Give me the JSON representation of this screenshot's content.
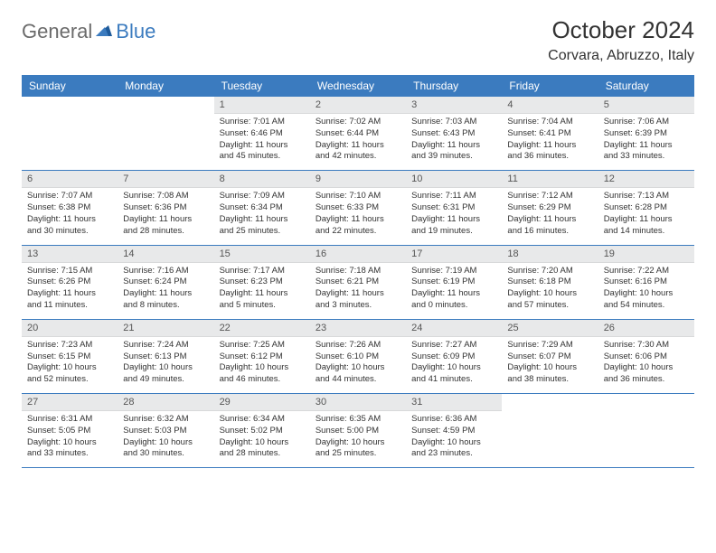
{
  "logo": {
    "text1": "General",
    "text2": "Blue"
  },
  "title": "October 2024",
  "location": "Corvara, Abruzzo, Italy",
  "colors": {
    "header_bg": "#3b7bbf",
    "header_text": "#ffffff",
    "daynum_bg": "#e8e9ea",
    "row_divider": "#3b7bbf",
    "body_text": "#333333",
    "logo_gray": "#6b6b6b",
    "logo_blue": "#3b7bbf"
  },
  "typography": {
    "title_fontsize": 26,
    "location_fontsize": 16,
    "dayheader_fontsize": 12,
    "daynum_fontsize": 11,
    "cell_fontsize": 9.5
  },
  "calendar": {
    "type": "table",
    "day_headers": [
      "Sunday",
      "Monday",
      "Tuesday",
      "Wednesday",
      "Thursday",
      "Friday",
      "Saturday"
    ],
    "weeks": [
      [
        {
          "n": "",
          "lines": [
            "",
            "",
            ""
          ]
        },
        {
          "n": "",
          "lines": [
            "",
            "",
            ""
          ]
        },
        {
          "n": "1",
          "lines": [
            "Sunrise: 7:01 AM",
            "Sunset: 6:46 PM",
            "Daylight: 11 hours and 45 minutes."
          ]
        },
        {
          "n": "2",
          "lines": [
            "Sunrise: 7:02 AM",
            "Sunset: 6:44 PM",
            "Daylight: 11 hours and 42 minutes."
          ]
        },
        {
          "n": "3",
          "lines": [
            "Sunrise: 7:03 AM",
            "Sunset: 6:43 PM",
            "Daylight: 11 hours and 39 minutes."
          ]
        },
        {
          "n": "4",
          "lines": [
            "Sunrise: 7:04 AM",
            "Sunset: 6:41 PM",
            "Daylight: 11 hours and 36 minutes."
          ]
        },
        {
          "n": "5",
          "lines": [
            "Sunrise: 7:06 AM",
            "Sunset: 6:39 PM",
            "Daylight: 11 hours and 33 minutes."
          ]
        }
      ],
      [
        {
          "n": "6",
          "lines": [
            "Sunrise: 7:07 AM",
            "Sunset: 6:38 PM",
            "Daylight: 11 hours and 30 minutes."
          ]
        },
        {
          "n": "7",
          "lines": [
            "Sunrise: 7:08 AM",
            "Sunset: 6:36 PM",
            "Daylight: 11 hours and 28 minutes."
          ]
        },
        {
          "n": "8",
          "lines": [
            "Sunrise: 7:09 AM",
            "Sunset: 6:34 PM",
            "Daylight: 11 hours and 25 minutes."
          ]
        },
        {
          "n": "9",
          "lines": [
            "Sunrise: 7:10 AM",
            "Sunset: 6:33 PM",
            "Daylight: 11 hours and 22 minutes."
          ]
        },
        {
          "n": "10",
          "lines": [
            "Sunrise: 7:11 AM",
            "Sunset: 6:31 PM",
            "Daylight: 11 hours and 19 minutes."
          ]
        },
        {
          "n": "11",
          "lines": [
            "Sunrise: 7:12 AM",
            "Sunset: 6:29 PM",
            "Daylight: 11 hours and 16 minutes."
          ]
        },
        {
          "n": "12",
          "lines": [
            "Sunrise: 7:13 AM",
            "Sunset: 6:28 PM",
            "Daylight: 11 hours and 14 minutes."
          ]
        }
      ],
      [
        {
          "n": "13",
          "lines": [
            "Sunrise: 7:15 AM",
            "Sunset: 6:26 PM",
            "Daylight: 11 hours and 11 minutes."
          ]
        },
        {
          "n": "14",
          "lines": [
            "Sunrise: 7:16 AM",
            "Sunset: 6:24 PM",
            "Daylight: 11 hours and 8 minutes."
          ]
        },
        {
          "n": "15",
          "lines": [
            "Sunrise: 7:17 AM",
            "Sunset: 6:23 PM",
            "Daylight: 11 hours and 5 minutes."
          ]
        },
        {
          "n": "16",
          "lines": [
            "Sunrise: 7:18 AM",
            "Sunset: 6:21 PM",
            "Daylight: 11 hours and 3 minutes."
          ]
        },
        {
          "n": "17",
          "lines": [
            "Sunrise: 7:19 AM",
            "Sunset: 6:19 PM",
            "Daylight: 11 hours and 0 minutes."
          ]
        },
        {
          "n": "18",
          "lines": [
            "Sunrise: 7:20 AM",
            "Sunset: 6:18 PM",
            "Daylight: 10 hours and 57 minutes."
          ]
        },
        {
          "n": "19",
          "lines": [
            "Sunrise: 7:22 AM",
            "Sunset: 6:16 PM",
            "Daylight: 10 hours and 54 minutes."
          ]
        }
      ],
      [
        {
          "n": "20",
          "lines": [
            "Sunrise: 7:23 AM",
            "Sunset: 6:15 PM",
            "Daylight: 10 hours and 52 minutes."
          ]
        },
        {
          "n": "21",
          "lines": [
            "Sunrise: 7:24 AM",
            "Sunset: 6:13 PM",
            "Daylight: 10 hours and 49 minutes."
          ]
        },
        {
          "n": "22",
          "lines": [
            "Sunrise: 7:25 AM",
            "Sunset: 6:12 PM",
            "Daylight: 10 hours and 46 minutes."
          ]
        },
        {
          "n": "23",
          "lines": [
            "Sunrise: 7:26 AM",
            "Sunset: 6:10 PM",
            "Daylight: 10 hours and 44 minutes."
          ]
        },
        {
          "n": "24",
          "lines": [
            "Sunrise: 7:27 AM",
            "Sunset: 6:09 PM",
            "Daylight: 10 hours and 41 minutes."
          ]
        },
        {
          "n": "25",
          "lines": [
            "Sunrise: 7:29 AM",
            "Sunset: 6:07 PM",
            "Daylight: 10 hours and 38 minutes."
          ]
        },
        {
          "n": "26",
          "lines": [
            "Sunrise: 7:30 AM",
            "Sunset: 6:06 PM",
            "Daylight: 10 hours and 36 minutes."
          ]
        }
      ],
      [
        {
          "n": "27",
          "lines": [
            "Sunrise: 6:31 AM",
            "Sunset: 5:05 PM",
            "Daylight: 10 hours and 33 minutes."
          ]
        },
        {
          "n": "28",
          "lines": [
            "Sunrise: 6:32 AM",
            "Sunset: 5:03 PM",
            "Daylight: 10 hours and 30 minutes."
          ]
        },
        {
          "n": "29",
          "lines": [
            "Sunrise: 6:34 AM",
            "Sunset: 5:02 PM",
            "Daylight: 10 hours and 28 minutes."
          ]
        },
        {
          "n": "30",
          "lines": [
            "Sunrise: 6:35 AM",
            "Sunset: 5:00 PM",
            "Daylight: 10 hours and 25 minutes."
          ]
        },
        {
          "n": "31",
          "lines": [
            "Sunrise: 6:36 AM",
            "Sunset: 4:59 PM",
            "Daylight: 10 hours and 23 minutes."
          ]
        },
        {
          "n": "",
          "lines": [
            "",
            "",
            ""
          ]
        },
        {
          "n": "",
          "lines": [
            "",
            "",
            ""
          ]
        }
      ]
    ]
  }
}
